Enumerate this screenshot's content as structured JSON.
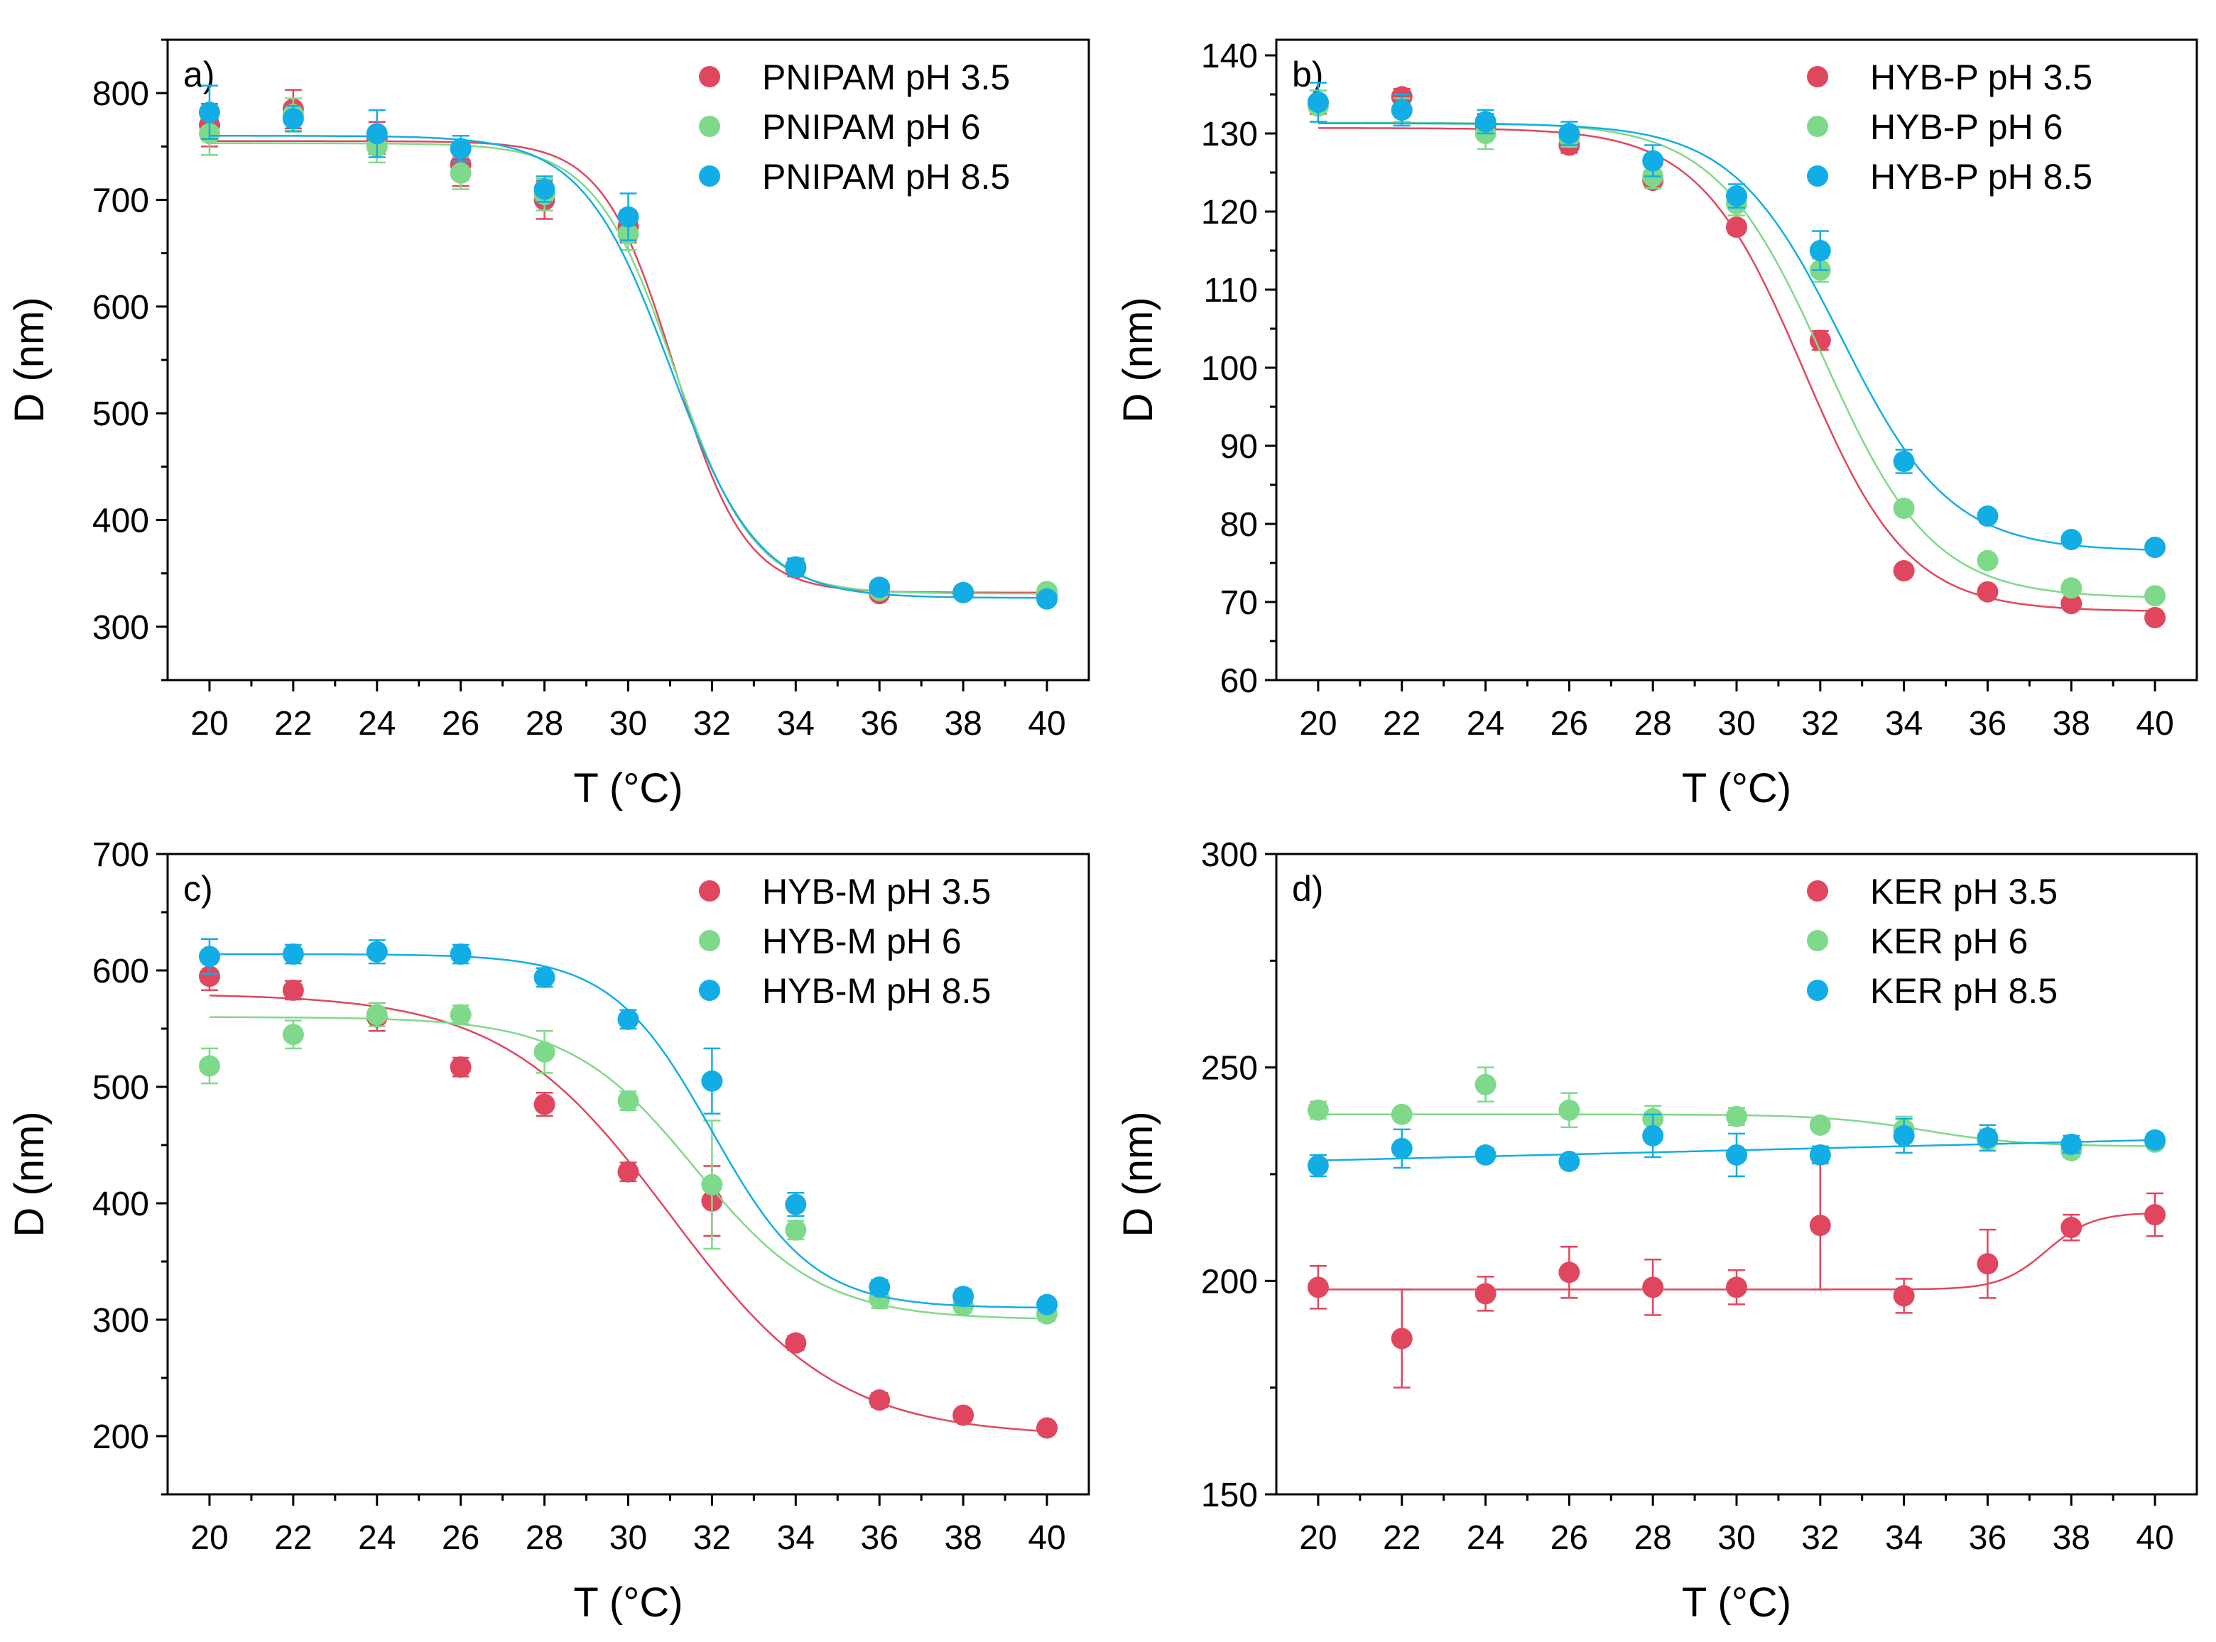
{
  "colors": {
    "ph35": "#E0475E",
    "ph6": "#7FD98A",
    "ph85": "#13ADE5",
    "axis": "#000000"
  },
  "chart_data": [
    {
      "type": "scatter",
      "panel_label": "a)",
      "xlabel": "T (°C)",
      "ylabel": "D (nm)",
      "xlim": [
        19,
        41
      ],
      "ylim": [
        250,
        850
      ],
      "xticks": [
        20,
        22,
        24,
        26,
        28,
        30,
        32,
        34,
        36,
        38,
        40
      ],
      "yticks": [
        300,
        400,
        500,
        600,
        700,
        800
      ],
      "legend_position": "top-right",
      "series": [
        {
          "name": "PNIPAM pH 3.5",
          "color_key": "ph35",
          "x": [
            20,
            22,
            24,
            26,
            28,
            30,
            32,
            34,
            36,
            38,
            40
          ],
          "y": [
            770,
            785,
            758,
            733,
            700,
            675,
            null,
            355,
            331,
            332,
            330
          ],
          "err": [
            20,
            18,
            15,
            20,
            18,
            15,
            null,
            8,
            5,
            5,
            5
          ],
          "fit": {
            "top": 755,
            "bottom": 332,
            "x0": 31.1,
            "w": 0.85
          }
        },
        {
          "name": "PNIPAM pH 6",
          "color_key": "ph6",
          "x": [
            20,
            22,
            24,
            26,
            28,
            30,
            32,
            34,
            36,
            38,
            40
          ],
          "y": [
            762,
            780,
            750,
            725,
            705,
            668,
            null,
            356,
            334,
            332,
            333
          ],
          "err": [
            20,
            15,
            15,
            15,
            15,
            15,
            null,
            8,
            5,
            5,
            5
          ],
          "fit": {
            "top": 753,
            "bottom": 331,
            "x0": 31.1,
            "w": 0.95
          }
        },
        {
          "name": "PNIPAM pH 8.5",
          "color_key": "ph85",
          "x": [
            20,
            22,
            24,
            26,
            28,
            30,
            32,
            34,
            36,
            38,
            40
          ],
          "y": [
            782,
            776,
            762,
            748,
            710,
            684,
            null,
            356,
            337,
            332,
            326
          ],
          "err": [
            25,
            12,
            22,
            12,
            12,
            22,
            null,
            8,
            6,
            5,
            5
          ],
          "fit": {
            "top": 760,
            "bottom": 327,
            "x0": 31.0,
            "w": 1.05
          }
        }
      ]
    },
    {
      "type": "scatter",
      "panel_label": "b)",
      "xlabel": "T (°C)",
      "ylabel": "D (nm)",
      "xlim": [
        19,
        41
      ],
      "ylim": [
        60,
        142
      ],
      "xticks": [
        20,
        22,
        24,
        26,
        28,
        30,
        32,
        34,
        36,
        38,
        40
      ],
      "yticks": [
        60,
        70,
        80,
        90,
        100,
        110,
        120,
        130,
        140
      ],
      "legend_position": "top-right",
      "series": [
        {
          "name": "HYB-P pH 3.5",
          "color_key": "ph35",
          "x": [
            20,
            22,
            24,
            26,
            28,
            30,
            32,
            34,
            36,
            38,
            40
          ],
          "y": [
            134,
            134.7,
            131,
            128.5,
            124,
            118,
            103.5,
            74,
            71.3,
            69.8,
            68
          ],
          "err": [
            1.5,
            1,
            1.5,
            1,
            1,
            0.8,
            1.2,
            0.6,
            0.6,
            0.5,
            0.5
          ],
          "fit": {
            "top": 130.7,
            "bottom": 68.8,
            "x0": 31.6,
            "w": 1.25
          }
        },
        {
          "name": "HYB-P pH 6",
          "color_key": "ph6",
          "x": [
            20,
            22,
            24,
            26,
            28,
            30,
            32,
            34,
            36,
            38,
            40
          ],
          "y": [
            133.5,
            133,
            130,
            129.5,
            124.5,
            121,
            112.5,
            82,
            75.3,
            71.8,
            70.8
          ],
          "err": [
            2,
            1.5,
            2,
            1.2,
            1.5,
            1.5,
            1.5,
            0.8,
            0.6,
            0.6,
            0.5
          ],
          "fit": {
            "top": 131.4,
            "bottom": 70.5,
            "x0": 32.1,
            "w": 1.3
          }
        },
        {
          "name": "HYB-P pH 8.5",
          "color_key": "ph85",
          "x": [
            20,
            22,
            24,
            26,
            28,
            30,
            32,
            34,
            36,
            38,
            40
          ],
          "y": [
            134,
            133,
            131.5,
            130,
            126.5,
            122,
            115,
            88,
            81,
            78,
            77
          ],
          "err": [
            2.5,
            2,
            1.5,
            1.5,
            2,
            1.5,
            2.5,
            1.5,
            0.8,
            0.6,
            0.5
          ],
          "fit": {
            "top": 131.3,
            "bottom": 76.5,
            "x0": 32.5,
            "w": 1.3
          }
        }
      ]
    },
    {
      "type": "scatter",
      "panel_label": "c)",
      "xlabel": "T (°C)",
      "ylabel": "D (nm)",
      "xlim": [
        19,
        41
      ],
      "ylim": [
        150,
        700
      ],
      "xticks": [
        20,
        22,
        24,
        26,
        28,
        30,
        32,
        34,
        36,
        38,
        40
      ],
      "yticks": [
        200,
        300,
        400,
        500,
        600,
        700
      ],
      "legend_position": "top-right",
      "series": [
        {
          "name": "HYB-M pH 3.5",
          "color_key": "ph35",
          "x": [
            20,
            22,
            24,
            26,
            28,
            30,
            32,
            34,
            36,
            38,
            40
          ],
          "y": [
            595,
            583,
            560,
            517,
            485,
            427,
            402,
            280,
            231,
            218,
            207
          ],
          "err": [
            12,
            8,
            12,
            8,
            10,
            8,
            30,
            6,
            6,
            5,
            5
          ],
          "fit": {
            "top": 580,
            "bottom": 200,
            "x0": 31.0,
            "w": 2.0
          }
        },
        {
          "name": "HYB-M pH 6",
          "color_key": "ph6",
          "x": [
            20,
            22,
            24,
            26,
            28,
            30,
            32,
            34,
            36,
            38,
            40
          ],
          "y": [
            518,
            545,
            562,
            562,
            530,
            488,
            416,
            377,
            318,
            312,
            305
          ],
          "err": [
            15,
            12,
            10,
            8,
            18,
            8,
            55,
            8,
            8,
            6,
            6
          ],
          "fit": {
            "top": 560,
            "bottom": 300,
            "x0": 31.6,
            "w": 1.5
          }
        },
        {
          "name": "HYB-M pH 8.5",
          "color_key": "ph85",
          "x": [
            20,
            22,
            24,
            26,
            28,
            30,
            32,
            34,
            36,
            38,
            40
          ],
          "y": [
            612,
            614,
            616,
            614,
            594,
            558,
            505,
            399,
            328,
            320,
            313
          ],
          "err": [
            15,
            8,
            10,
            8,
            8,
            8,
            28,
            10,
            6,
            6,
            5
          ],
          "fit": {
            "top": 614,
            "bottom": 310,
            "x0": 32.0,
            "w": 1.2
          }
        }
      ]
    },
    {
      "type": "scatter",
      "panel_label": "d)",
      "xlabel": "T (°C)",
      "ylabel": "D (nm)",
      "xlim": [
        19,
        41
      ],
      "ylim": [
        150,
        300
      ],
      "xticks": [
        20,
        22,
        24,
        26,
        28,
        30,
        32,
        34,
        36,
        38,
        40
      ],
      "yticks": [
        150,
        200,
        250,
        300
      ],
      "legend_position": "top-right",
      "series": [
        {
          "name": "KER pH 3.5",
          "color_key": "ph35",
          "x": [
            20,
            22,
            24,
            26,
            28,
            30,
            32,
            34,
            36,
            38,
            40
          ],
          "y": [
            198.5,
            186.5,
            197,
            202,
            198.5,
            198.5,
            213,
            196.5,
            204,
            212.5,
            215.5
          ],
          "err": [
            5,
            11.5,
            4,
            6,
            6.5,
            4,
            15,
            4,
            8,
            3,
            5
          ],
          "fit": {
            "top": 198,
            "bottom": 216,
            "x0": 37.4,
            "w": 0.55
          }
        },
        {
          "name": "KER pH 6",
          "color_key": "ph6",
          "x": [
            20,
            22,
            24,
            26,
            28,
            30,
            32,
            34,
            36,
            38,
            40
          ],
          "y": [
            240,
            239,
            246,
            240,
            238,
            238.5,
            236.5,
            235.5,
            233,
            230.5,
            232.5
          ],
          "err": [
            2,
            1.5,
            4,
            4,
            3,
            2,
            1.5,
            3,
            2.5,
            1.5,
            1.5
          ],
          "fit": {
            "top": 239,
            "bottom": 231.5,
            "x0": 34.5,
            "w": 1.2
          }
        },
        {
          "name": "KER pH 8.5",
          "color_key": "ph85",
          "x": [
            20,
            22,
            24,
            26,
            28,
            30,
            32,
            34,
            36,
            38,
            40
          ],
          "y": [
            227,
            231,
            229.5,
            228,
            234,
            229.5,
            229.5,
            234,
            233.5,
            232,
            233
          ],
          "err": [
            2.5,
            4.5,
            1.5,
            1.5,
            5,
            5,
            2,
            4,
            3,
            2,
            1.5
          ],
          "fit": {
            "linear": true,
            "y0": 228.2,
            "slope": 0.24
          }
        }
      ]
    }
  ]
}
